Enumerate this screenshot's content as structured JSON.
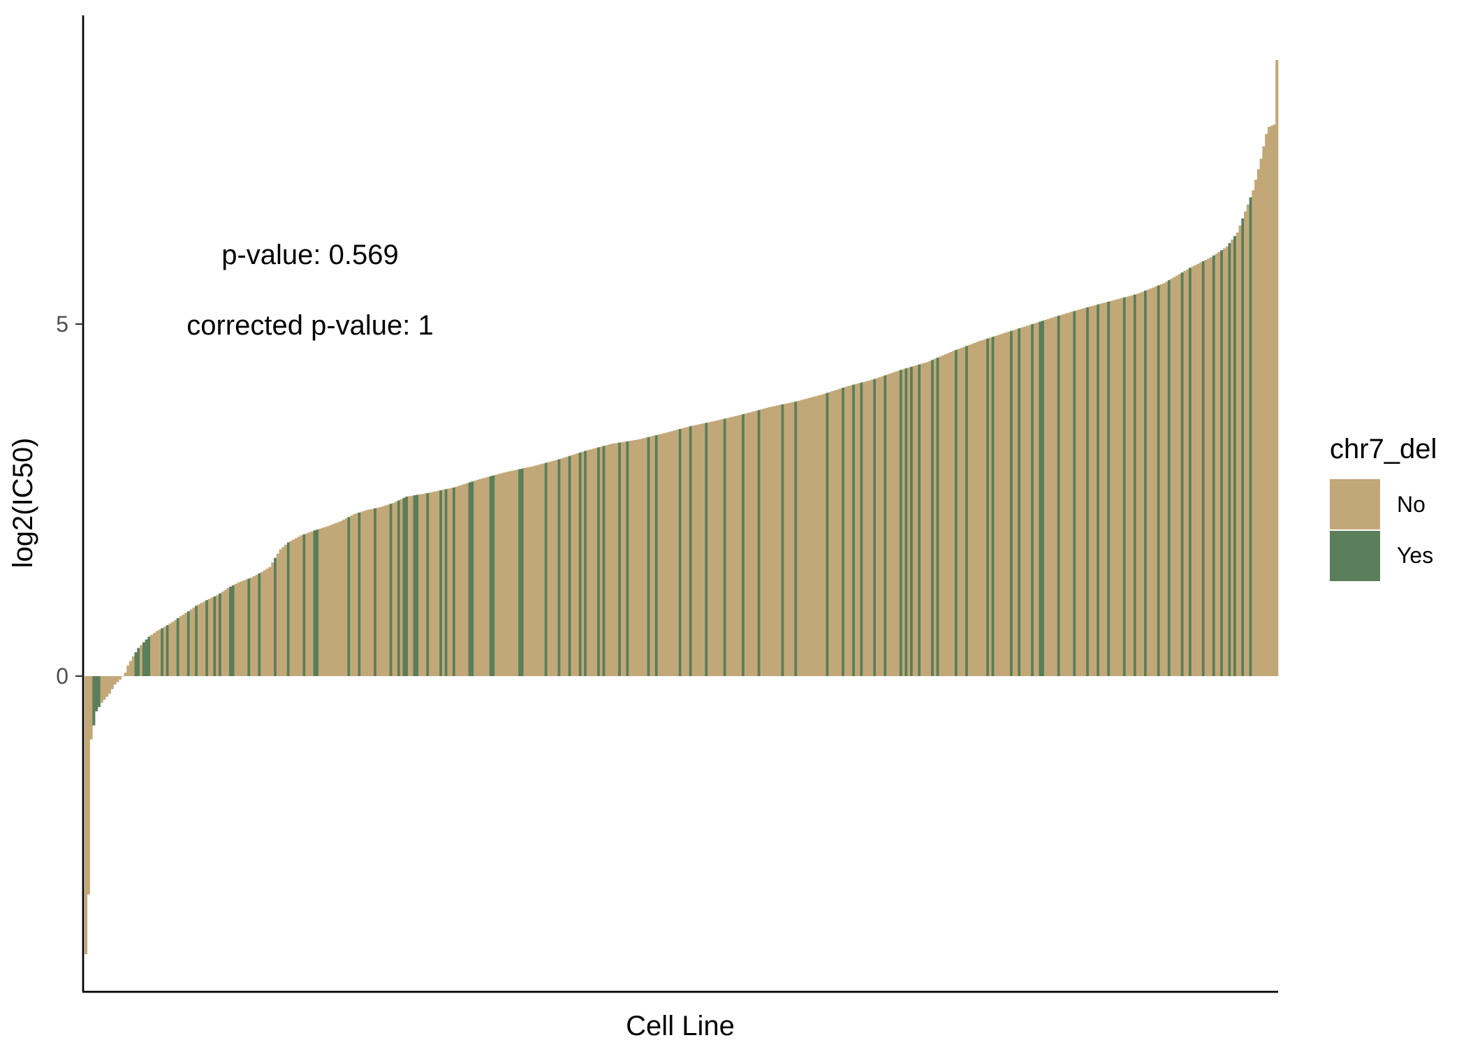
{
  "chart_data": {
    "type": "bar",
    "title": "",
    "xlabel": "Cell Line",
    "ylabel": "log2(IC50)",
    "ylim": [
      -4.5,
      9.4
    ],
    "y_ticks": [
      0,
      5
    ],
    "grid": false,
    "legend_position": "right",
    "sorted": "ascending",
    "legend": {
      "title": "chr7_del",
      "entries": [
        {
          "label": "No",
          "color": "#C2A878"
        },
        {
          "label": "Yes",
          "color": "#5A7E5A"
        }
      ]
    },
    "annotations": [
      "p-value: 0.569",
      "corrected p-value: 1"
    ],
    "n_bars": 454,
    "bar_values_by_rank": [
      [
        0,
        -3.95
      ],
      [
        1,
        -3.1
      ],
      [
        2,
        -0.9
      ],
      [
        4,
        -0.5
      ],
      [
        6,
        -0.38
      ],
      [
        9,
        -0.25
      ],
      [
        11,
        -0.12
      ],
      [
        13,
        -0.05
      ],
      [
        15,
        0.05
      ],
      [
        16,
        0.15
      ],
      [
        18,
        0.28
      ],
      [
        20,
        0.4
      ],
      [
        22,
        0.48
      ],
      [
        24,
        0.56
      ],
      [
        27,
        0.64
      ],
      [
        30,
        0.7
      ],
      [
        33,
        0.77
      ],
      [
        36,
        0.85
      ],
      [
        39,
        0.92
      ],
      [
        42,
        1.0
      ],
      [
        46,
        1.08
      ],
      [
        50,
        1.15
      ],
      [
        54,
        1.25
      ],
      [
        58,
        1.33
      ],
      [
        63,
        1.4
      ],
      [
        67,
        1.48
      ],
      [
        70,
        1.55
      ],
      [
        72,
        1.68
      ],
      [
        74,
        1.8
      ],
      [
        77,
        1.9
      ],
      [
        82,
        2.0
      ],
      [
        87,
        2.07
      ],
      [
        92,
        2.13
      ],
      [
        97,
        2.2
      ],
      [
        102,
        2.3
      ],
      [
        107,
        2.36
      ],
      [
        112,
        2.4
      ],
      [
        117,
        2.46
      ],
      [
        122,
        2.55
      ],
      [
        130,
        2.6
      ],
      [
        140,
        2.68
      ],
      [
        150,
        2.8
      ],
      [
        160,
        2.9
      ],
      [
        170,
        2.98
      ],
      [
        180,
        3.08
      ],
      [
        190,
        3.2
      ],
      [
        200,
        3.3
      ],
      [
        210,
        3.36
      ],
      [
        220,
        3.45
      ],
      [
        230,
        3.55
      ],
      [
        240,
        3.63
      ],
      [
        250,
        3.72
      ],
      [
        260,
        3.82
      ],
      [
        270,
        3.9
      ],
      [
        280,
        4.0
      ],
      [
        290,
        4.12
      ],
      [
        300,
        4.22
      ],
      [
        310,
        4.35
      ],
      [
        320,
        4.46
      ],
      [
        330,
        4.62
      ],
      [
        340,
        4.76
      ],
      [
        350,
        4.88
      ],
      [
        360,
        5.0
      ],
      [
        370,
        5.12
      ],
      [
        380,
        5.23
      ],
      [
        390,
        5.33
      ],
      [
        400,
        5.43
      ],
      [
        410,
        5.58
      ],
      [
        420,
        5.8
      ],
      [
        428,
        5.95
      ],
      [
        434,
        6.1
      ],
      [
        438,
        6.3
      ],
      [
        441,
        6.6
      ],
      [
        444,
        6.9
      ],
      [
        447,
        7.35
      ],
      [
        449,
        7.7
      ],
      [
        450,
        7.8
      ],
      [
        453,
        7.85
      ],
      [
        453.01,
        8.75
      ]
    ],
    "chr7_del_yes_ranks": [
      3,
      4,
      5,
      19,
      20,
      22,
      23,
      24,
      29,
      31,
      35,
      39,
      42,
      46,
      49,
      51,
      55,
      56,
      62,
      66,
      72,
      77,
      83,
      87,
      88,
      100,
      104,
      110,
      116,
      119,
      121,
      122,
      125,
      126,
      130,
      135,
      137,
      140,
      146,
      147,
      154,
      155,
      165,
      166,
      175,
      180,
      184,
      188,
      190,
      195,
      197,
      203,
      206,
      214,
      217,
      226,
      230,
      236,
      243,
      250,
      256,
      265,
      270,
      282,
      288,
      292,
      295,
      300,
      304,
      310,
      312,
      314,
      317,
      322,
      324,
      331,
      335,
      343,
      345,
      352,
      355,
      360,
      363,
      364,
      370,
      376,
      381,
      385,
      389,
      395,
      399,
      403,
      408,
      412,
      417,
      420,
      425,
      429,
      432,
      435,
      437,
      440,
      443
    ]
  }
}
